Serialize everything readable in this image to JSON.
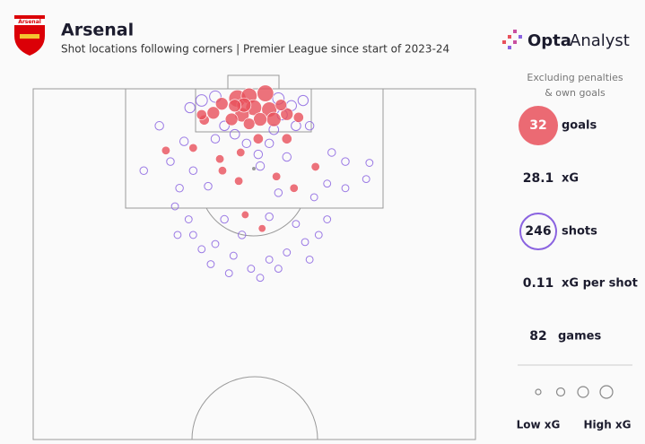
{
  "header": {
    "team": "Arsenal",
    "title": "Arsenal",
    "subtitle": "Shot locations following corners | Premier League since start of 2023-24",
    "logo_bold": "Opta",
    "logo_light": "Analyst"
  },
  "chart_data": {
    "type": "scatter",
    "xlim": [
      0,
      68
    ],
    "ylim": [
      0,
      54
    ],
    "goals": {
      "color": "#e8505b",
      "x": [
        31.4,
        33.2,
        35.7,
        29.0,
        33.9,
        36.3,
        32.1,
        27.7,
        30.5,
        37.0,
        34.9,
        39.0,
        40.8,
        32.4,
        34.6,
        26.3,
        20.4,
        24.6,
        31.9,
        29.1,
        31.6,
        37.4,
        40.1,
        43.4,
        35.2,
        32.6,
        25.9,
        38.1,
        33.2,
        39.0,
        28.7,
        31.0
      ],
      "y": [
        1.5,
        1.1,
        0.7,
        2.3,
        2.9,
        3.2,
        4.0,
        3.7,
        4.7,
        4.7,
        4.7,
        3.9,
        4.4,
        2.5,
        7.7,
        4.8,
        9.5,
        9.1,
        9.8,
        12.6,
        14.2,
        13.5,
        15.3,
        12.0,
        21.5,
        19.4,
        4.0,
        2.5,
        5.4,
        7.7,
        10.8,
        2.6
      ],
      "xg": [
        0.5,
        0.4,
        0.45,
        0.2,
        0.4,
        0.35,
        0.3,
        0.2,
        0.2,
        0.3,
        0.25,
        0.2,
        0.1,
        0.3,
        0.1,
        0.1,
        0.05,
        0.05,
        0.05,
        0.05,
        0.05,
        0.05,
        0.05,
        0.05,
        0.03,
        0.03,
        0.1,
        0.15,
        0.15,
        0.1,
        0.05,
        0.2
      ]
    },
    "shots": {
      "color": "#8a63e0",
      "x": [
        24.1,
        25.9,
        28.0,
        37.7,
        39.7,
        41.5,
        38.3,
        40.4,
        42.5,
        37.0,
        31.0,
        32.8,
        28.0,
        23.2,
        19.4,
        17.0,
        21.1,
        24.6,
        26.9,
        22.5,
        34.9,
        39.0,
        45.9,
        48.0,
        51.7,
        51.2,
        48.0,
        45.2,
        43.2,
        37.7,
        21.8,
        23.9,
        29.4,
        32.1,
        36.3,
        40.4,
        43.9,
        41.8,
        39.0,
        36.3,
        33.5,
        30.8,
        28.0,
        25.9,
        24.6,
        34.9,
        37.7,
        30.1,
        42.5,
        27.3,
        22.2,
        45.2,
        34.6,
        29.4,
        36.3
      ],
      "y": [
        2.9,
        1.8,
        1.2,
        1.5,
        2.6,
        1.8,
        4.0,
        5.7,
        5.7,
        6.3,
        7.0,
        8.4,
        7.7,
        8.1,
        5.7,
        12.6,
        11.2,
        12.6,
        15.0,
        15.3,
        11.9,
        10.5,
        9.8,
        11.2,
        11.4,
        13.9,
        15.3,
        14.6,
        16.7,
        16.0,
        18.1,
        20.1,
        20.1,
        22.5,
        19.7,
        20.8,
        22.5,
        23.6,
        25.2,
        26.3,
        27.7,
        25.7,
        23.9,
        24.7,
        22.5,
        29.1,
        27.7,
        28.4,
        26.3,
        27.0,
        22.5,
        20.1,
        10.1,
        5.7,
        8.4
      ],
      "xg": [
        0.1,
        0.15,
        0.15,
        0.15,
        0.1,
        0.1,
        0.1,
        0.08,
        0.05,
        0.08,
        0.08,
        0.05,
        0.05,
        0.05,
        0.05,
        0.03,
        0.03,
        0.03,
        0.03,
        0.03,
        0.05,
        0.05,
        0.03,
        0.03,
        0.02,
        0.02,
        0.02,
        0.02,
        0.02,
        0.03,
        0.02,
        0.02,
        0.03,
        0.03,
        0.03,
        0.02,
        0.02,
        0.02,
        0.02,
        0.02,
        0.02,
        0.02,
        0.02,
        0.02,
        0.02,
        0.02,
        0.02,
        0.02,
        0.02,
        0.02,
        0.02,
        0.02,
        0.05,
        0.08,
        0.05
      ]
    }
  },
  "side": {
    "note": [
      "Excluding penalties",
      "& own goals"
    ],
    "stats": [
      {
        "value": 32,
        "label": "goals"
      },
      {
        "value": 28.1,
        "label": "xG"
      },
      {
        "value": 246,
        "label": "shots"
      },
      {
        "value": 0.11,
        "label": "xG per shot"
      },
      {
        "value": 82,
        "label": "games"
      }
    ],
    "legend": [
      "Low xG",
      "High xG"
    ]
  }
}
